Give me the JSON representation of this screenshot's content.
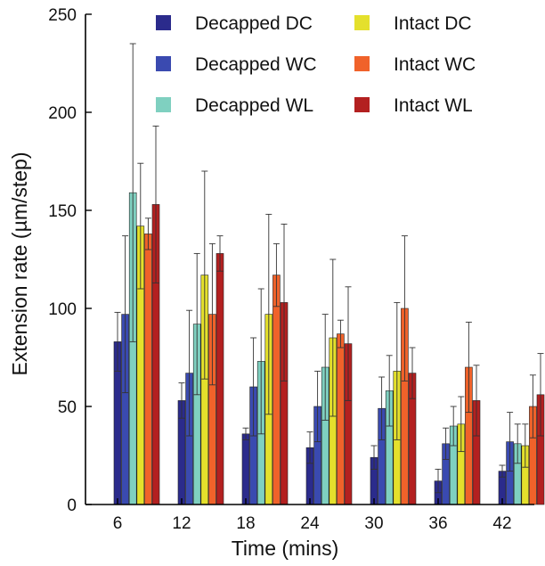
{
  "chart_data": {
    "type": "bar",
    "title": "",
    "xlabel": "Time (mins)",
    "ylabel": "Extension rate (µm/step)",
    "ylim": [
      0,
      250
    ],
    "yticks": [
      0,
      50,
      100,
      150,
      200,
      250
    ],
    "categories": [
      "6",
      "12",
      "18",
      "24",
      "30",
      "36",
      "42"
    ],
    "grid": false,
    "legend_position": "top",
    "series": [
      {
        "name": "Decapped DC",
        "color": "#2b2b8c",
        "values": [
          83,
          53,
          36,
          29,
          24,
          12,
          17
        ],
        "error": [
          15,
          9,
          3,
          8,
          6,
          6,
          3
        ]
      },
      {
        "name": "Decapped WC",
        "color": "#3a4ab0",
        "values": [
          97,
          67,
          60,
          50,
          49,
          31,
          32
        ],
        "error": [
          40,
          32,
          25,
          18,
          16,
          8,
          15
        ]
      },
      {
        "name": "Decapped WL",
        "color": "#7fd0c0",
        "values": [
          159,
          92,
          73,
          70,
          58,
          40,
          31
        ],
        "error": [
          76,
          36,
          37,
          27,
          18,
          10,
          10
        ]
      },
      {
        "name": "Intact DC",
        "color": "#e4e02c",
        "values": [
          142,
          117,
          97,
          85,
          68,
          41,
          30
        ],
        "error": [
          32,
          53,
          51,
          40,
          35,
          14,
          11
        ]
      },
      {
        "name": "Intact WC",
        "color": "#f0622a",
        "values": [
          138,
          97,
          117,
          87,
          100,
          70,
          50
        ],
        "error": [
          8,
          36,
          16,
          7,
          37,
          23,
          16
        ]
      },
      {
        "name": "Intact WL",
        "color": "#b32020",
        "values": [
          153,
          128,
          103,
          82,
          67,
          53,
          56
        ],
        "error": [
          40,
          9,
          40,
          29,
          13,
          18,
          21
        ]
      }
    ]
  }
}
